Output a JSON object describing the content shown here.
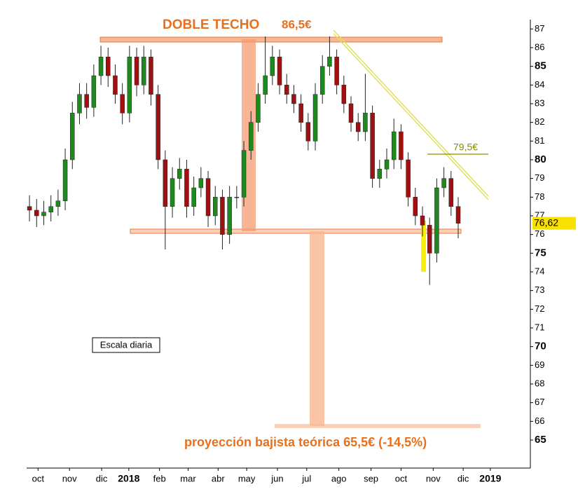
{
  "chart_data": {
    "type": "candlestick",
    "annotations": {
      "title_main": "DOBLE TECHO",
      "title_value": "86,5€",
      "resistance": "79,5€",
      "scale_note": "Escala diaria",
      "projection": "proyección bajista teórica 65,5€ (-14,5%)",
      "last_price": "76,62"
    },
    "up_color": "#1e8a1e",
    "down_color": "#a01010",
    "xlim": [
      -0.4,
      70.1
    ],
    "xticks": [
      {
        "value": 1.2,
        "label": "oct"
      },
      {
        "value": 5.6,
        "label": "nov"
      },
      {
        "value": 10.1,
        "label": "dic"
      },
      {
        "value": 13.9,
        "label": "2018"
      },
      {
        "value": 18.2,
        "label": "feb"
      },
      {
        "value": 22.2,
        "label": "mar"
      },
      {
        "value": 26.4,
        "label": "abr"
      },
      {
        "value": 30.4,
        "label": "may"
      },
      {
        "value": 34.7,
        "label": "jun"
      },
      {
        "value": 38.8,
        "label": "jul"
      },
      {
        "value": 43.3,
        "label": "ago"
      },
      {
        "value": 47.8,
        "label": "sep"
      },
      {
        "value": 52,
        "label": "oct"
      },
      {
        "value": 56.5,
        "label": "nov"
      },
      {
        "value": 60.7,
        "label": "dic"
      },
      {
        "value": 64.5,
        "label": "2019"
      }
    ],
    "ylim": [
      63.5,
      87.5
    ],
    "yticks": [
      65,
      66,
      67,
      68,
      69,
      70,
      71,
      72,
      73,
      74,
      75,
      76,
      77,
      78,
      79,
      80,
      81,
      82,
      83,
      84,
      85,
      86,
      87
    ],
    "open": [
      77.5,
      77.3,
      77.0,
      77.2,
      77.5,
      77.8,
      80.0,
      82.5,
      83.5,
      82.8,
      84.5,
      85.5,
      84.5,
      83.5,
      82.5,
      85.5,
      84.0,
      85.5,
      83.5,
      80.0,
      77.5,
      79.0,
      79.5,
      77.5,
      78.5,
      79.0,
      77.0,
      78.0,
      76.0,
      78.0,
      78.0,
      80.5,
      82.0,
      83.5,
      84.5,
      85.5,
      84.0,
      83.5,
      83.0,
      82.0,
      81.0,
      83.5,
      85.0,
      85.5,
      84.0,
      83.0,
      82.0,
      81.5,
      82.5,
      79.0,
      79.5,
      80.0,
      81.5,
      80.0,
      78.0,
      77.0,
      76.5,
      75.0,
      78.5,
      79.0,
      77.5
    ],
    "high": [
      78.1,
      77.9,
      77.8,
      78.1,
      78.4,
      80.6,
      83.1,
      84.1,
      84.1,
      85.1,
      86.1,
      86.0,
      85.1,
      84.1,
      86.1,
      86.0,
      86.1,
      85.9,
      84.0,
      80.5,
      79.6,
      80.1,
      80.0,
      79.1,
      79.6,
      79.4,
      78.6,
      78.4,
      78.6,
      78.6,
      81.0,
      82.6,
      84.1,
      86.6,
      86.1,
      85.9,
      84.6,
      84.0,
      83.5,
      82.5,
      84.1,
      85.6,
      86.6,
      85.9,
      84.5,
      83.4,
      82.5,
      84.6,
      82.9,
      80.0,
      80.6,
      82.2,
      81.9,
      80.4,
      78.5,
      77.5,
      76.9,
      79.0,
      79.6,
      79.4,
      78.0
    ],
    "low": [
      76.7,
      76.4,
      76.5,
      76.7,
      77.0,
      77.3,
      79.5,
      81.9,
      82.2,
      82.3,
      84.0,
      83.9,
      83.0,
      81.9,
      82.0,
      83.4,
      83.5,
      82.9,
      79.5,
      75.2,
      76.9,
      78.4,
      76.9,
      77.0,
      78.0,
      76.4,
      76.5,
      75.2,
      75.5,
      77.4,
      77.5,
      80.0,
      81.5,
      83.0,
      84.0,
      83.5,
      83.0,
      82.5,
      81.5,
      80.5,
      80.5,
      83.0,
      84.5,
      83.5,
      82.5,
      81.5,
      81.0,
      81.0,
      78.5,
      78.5,
      79.0,
      79.5,
      79.5,
      77.5,
      76.5,
      75.9,
      73.3,
      74.5,
      78.0,
      77.0,
      75.8
    ],
    "close": [
      77.3,
      77.0,
      77.2,
      77.5,
      77.8,
      80.0,
      82.5,
      83.5,
      82.8,
      84.5,
      85.5,
      84.5,
      83.5,
      82.5,
      85.5,
      84.0,
      85.5,
      83.5,
      80.0,
      77.5,
      79.0,
      79.5,
      77.5,
      78.5,
      79.0,
      77.0,
      78.0,
      76.0,
      78.0,
      78.0,
      80.5,
      82.0,
      83.5,
      84.5,
      85.5,
      84.0,
      83.5,
      83.0,
      82.0,
      81.0,
      83.5,
      85.0,
      85.5,
      84.0,
      83.0,
      82.0,
      81.5,
      82.5,
      79.0,
      79.5,
      80.0,
      81.5,
      80.0,
      78.0,
      77.0,
      76.5,
      75.0,
      78.5,
      79.0,
      77.5,
      76.6
    ]
  }
}
